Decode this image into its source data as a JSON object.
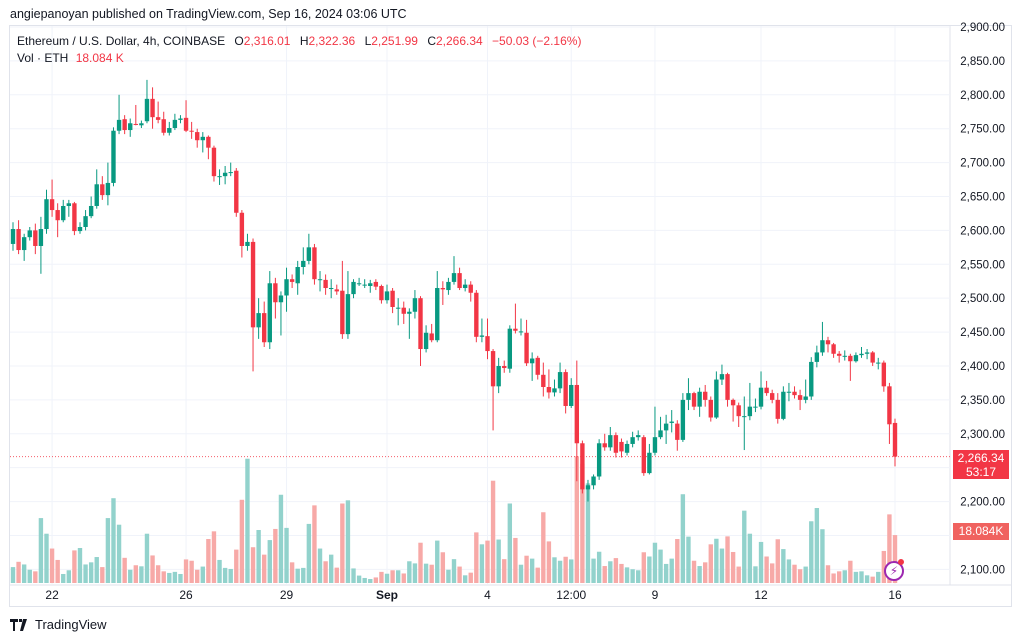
{
  "header": {
    "published": "angiepanoyan published on TradingView.com, Sep 16, 2024 03:06 UTC"
  },
  "legend": {
    "symbol": "Ethereum / U.S. Dollar, 4h, COINBASE",
    "o_label": "O",
    "o": "2,316.01",
    "h_label": "H",
    "h": "2,322.36",
    "l_label": "L",
    "l": "2,251.99",
    "c_label": "C",
    "c": "2,266.34",
    "change": "−50.03 (−2.16%)",
    "vol_label": "Vol · ETH",
    "vol": "18.084 K"
  },
  "tags": {
    "last_price": "2,266.34",
    "countdown": "53:17",
    "volume": "18.084K"
  },
  "footer": {
    "brand": "TradingView"
  },
  "colors": {
    "up": "#089981",
    "down": "#f23645",
    "vol_up": "#92d2cc",
    "vol_down": "#f7a9a7",
    "grid": "#f0f3fa"
  },
  "chart_data": {
    "type": "candlestick",
    "title": "Ethereum / U.S. Dollar, 4h, COINBASE",
    "ylim": [
      2085,
      2910
    ],
    "y_ticks": [
      "2,900.00",
      "2,850.00",
      "2,800.00",
      "2,750.00",
      "2,700.00",
      "2,650.00",
      "2,600.00",
      "2,550.00",
      "2,500.00",
      "2,450.00",
      "2,400.00",
      "2,350.00",
      "2,300.00",
      "2,200.00",
      "2,100.00"
    ],
    "y_tick_values": [
      2900,
      2850,
      2800,
      2750,
      2700,
      2650,
      2600,
      2550,
      2500,
      2450,
      2400,
      2350,
      2300,
      2200,
      2100
    ],
    "x_ticks": [
      {
        "label": "22",
        "index": 7,
        "bold": false
      },
      {
        "label": "26",
        "index": 31,
        "bold": false
      },
      {
        "label": "29",
        "index": 49,
        "bold": false
      },
      {
        "label": "Sep",
        "index": 67,
        "bold": true
      },
      {
        "label": "4",
        "index": 85,
        "bold": false
      },
      {
        "label": "12:00",
        "index": 100,
        "bold": false
      },
      {
        "label": "9",
        "index": 115,
        "bold": false
      },
      {
        "label": "12",
        "index": 134,
        "bold": false
      },
      {
        "label": "16",
        "index": 158,
        "bold": false
      }
    ],
    "ohlc_columns": [
      "open",
      "high",
      "low",
      "close"
    ],
    "ohlc": [
      [
        2580,
        2612,
        2570,
        2602
      ],
      [
        2602,
        2615,
        2565,
        2571
      ],
      [
        2571,
        2595,
        2555,
        2590
      ],
      [
        2590,
        2605,
        2585,
        2600
      ],
      [
        2600,
        2610,
        2565,
        2577
      ],
      [
        2577,
        2620,
        2536,
        2602
      ],
      [
        2602,
        2660,
        2595,
        2646
      ],
      [
        2646,
        2675,
        2620,
        2630
      ],
      [
        2630,
        2640,
        2590,
        2615
      ],
      [
        2615,
        2645,
        2612,
        2636
      ],
      [
        2636,
        2645,
        2620,
        2640
      ],
      [
        2640,
        2642,
        2593,
        2599
      ],
      [
        2599,
        2612,
        2595,
        2605
      ],
      [
        2605,
        2630,
        2600,
        2621
      ],
      [
        2621,
        2650,
        2618,
        2636
      ],
      [
        2636,
        2690,
        2632,
        2668
      ],
      [
        2668,
        2680,
        2645,
        2652
      ],
      [
        2652,
        2700,
        2637,
        2670
      ],
      [
        2670,
        2752,
        2665,
        2747
      ],
      [
        2747,
        2800,
        2742,
        2763
      ],
      [
        2764,
        2770,
        2742,
        2748
      ],
      [
        2748,
        2765,
        2738,
        2758
      ],
      [
        2757,
        2785,
        2755,
        2756
      ],
      [
        2755,
        2762,
        2751,
        2758
      ],
      [
        2761,
        2822,
        2758,
        2794
      ],
      [
        2794,
        2811,
        2750,
        2767
      ],
      [
        2767,
        2790,
        2758,
        2763
      ],
      [
        2764,
        2775,
        2740,
        2744
      ],
      [
        2744,
        2760,
        2740,
        2751
      ],
      [
        2751,
        2772,
        2748,
        2763
      ],
      [
        2763,
        2770,
        2758,
        2765
      ],
      [
        2766,
        2792,
        2745,
        2747
      ],
      [
        2747,
        2760,
        2735,
        2746
      ],
      [
        2745,
        2750,
        2722,
        2733
      ],
      [
        2733,
        2745,
        2715,
        2738
      ],
      [
        2738,
        2740,
        2705,
        2722
      ],
      [
        2722,
        2725,
        2672,
        2680
      ],
      [
        2680,
        2690,
        2667,
        2680
      ],
      [
        2680,
        2695,
        2668,
        2685
      ],
      [
        2685,
        2700,
        2680,
        2686
      ],
      [
        2688,
        2692,
        2620,
        2626
      ],
      [
        2626,
        2630,
        2560,
        2577
      ],
      [
        2577,
        2595,
        2570,
        2583
      ],
      [
        2583,
        2588,
        2392,
        2457
      ],
      [
        2457,
        2500,
        2440,
        2478
      ],
      [
        2478,
        2495,
        2428,
        2435
      ],
      [
        2435,
        2540,
        2425,
        2522
      ],
      [
        2522,
        2530,
        2470,
        2494
      ],
      [
        2494,
        2510,
        2445,
        2504
      ],
      [
        2504,
        2545,
        2480,
        2528
      ],
      [
        2528,
        2535,
        2515,
        2524
      ],
      [
        2522,
        2555,
        2505,
        2546
      ],
      [
        2546,
        2575,
        2535,
        2555
      ],
      [
        2555,
        2595,
        2550,
        2575
      ],
      [
        2575,
        2580,
        2520,
        2528
      ],
      [
        2528,
        2540,
        2510,
        2528
      ],
      [
        2527,
        2535,
        2505,
        2515
      ],
      [
        2515,
        2528,
        2500,
        2515
      ],
      [
        2513,
        2520,
        2505,
        2510
      ],
      [
        2511,
        2555,
        2440,
        2447
      ],
      [
        2447,
        2540,
        2440,
        2506
      ],
      [
        2506,
        2528,
        2500,
        2524
      ],
      [
        2522,
        2530,
        2518,
        2522
      ],
      [
        2520,
        2528,
        2515,
        2520
      ],
      [
        2518,
        2527,
        2508,
        2522
      ],
      [
        2524,
        2528,
        2512,
        2517
      ],
      [
        2518,
        2520,
        2492,
        2497
      ],
      [
        2497,
        2520,
        2492,
        2510
      ],
      [
        2511,
        2515,
        2478,
        2487
      ],
      [
        2486,
        2500,
        2460,
        2486
      ],
      [
        2486,
        2495,
        2462,
        2477
      ],
      [
        2477,
        2485,
        2440,
        2480
      ],
      [
        2480,
        2512,
        2470,
        2500
      ],
      [
        2500,
        2503,
        2400,
        2425
      ],
      [
        2425,
        2460,
        2420,
        2449
      ],
      [
        2448,
        2462,
        2435,
        2438
      ],
      [
        2438,
        2540,
        2435,
        2515
      ],
      [
        2515,
        2525,
        2490,
        2513
      ],
      [
        2512,
        2530,
        2505,
        2524
      ],
      [
        2524,
        2562,
        2520,
        2537
      ],
      [
        2537,
        2545,
        2512,
        2515
      ],
      [
        2515,
        2528,
        2510,
        2520
      ],
      [
        2520,
        2525,
        2495,
        2508
      ],
      [
        2508,
        2512,
        2435,
        2443
      ],
      [
        2443,
        2470,
        2435,
        2445
      ],
      [
        2444,
        2470,
        2410,
        2422
      ],
      [
        2422,
        2425,
        2305,
        2370
      ],
      [
        2370,
        2412,
        2360,
        2400
      ],
      [
        2400,
        2408,
        2390,
        2397
      ],
      [
        2396,
        2460,
        2390,
        2455
      ],
      [
        2455,
        2492,
        2448,
        2452
      ],
      [
        2451,
        2470,
        2445,
        2451
      ],
      [
        2449,
        2468,
        2400,
        2404
      ],
      [
        2404,
        2420,
        2378,
        2411
      ],
      [
        2412,
        2415,
        2380,
        2387
      ],
      [
        2387,
        2405,
        2355,
        2369
      ],
      [
        2369,
        2395,
        2352,
        2361
      ],
      [
        2361,
        2380,
        2355,
        2367
      ],
      [
        2367,
        2405,
        2360,
        2391
      ],
      [
        2391,
        2395,
        2330,
        2341
      ],
      [
        2341,
        2382,
        2338,
        2372
      ],
      [
        2372,
        2408,
        2230,
        2286
      ],
      [
        2286,
        2290,
        2212,
        2218
      ],
      [
        2218,
        2232,
        2200,
        2224
      ],
      [
        2224,
        2240,
        2218,
        2237
      ],
      [
        2237,
        2292,
        2232,
        2286
      ],
      [
        2286,
        2300,
        2275,
        2280
      ],
      [
        2280,
        2310,
        2275,
        2298
      ],
      [
        2298,
        2302,
        2265,
        2272
      ],
      [
        2288,
        2293,
        2265,
        2274
      ],
      [
        2272,
        2290,
        2268,
        2285
      ],
      [
        2285,
        2303,
        2280,
        2295
      ],
      [
        2295,
        2305,
        2290,
        2298
      ],
      [
        2295,
        2298,
        2238,
        2242
      ],
      [
        2242,
        2285,
        2240,
        2272
      ],
      [
        2272,
        2340,
        2268,
        2295
      ],
      [
        2295,
        2325,
        2292,
        2305
      ],
      [
        2305,
        2328,
        2285,
        2315
      ],
      [
        2316,
        2335,
        2302,
        2318
      ],
      [
        2315,
        2320,
        2275,
        2291
      ],
      [
        2291,
        2360,
        2288,
        2350
      ],
      [
        2350,
        2382,
        2335,
        2360
      ],
      [
        2360,
        2362,
        2335,
        2340
      ],
      [
        2340,
        2368,
        2325,
        2362
      ],
      [
        2362,
        2372,
        2340,
        2350
      ],
      [
        2350,
        2355,
        2318,
        2324
      ],
      [
        2324,
        2392,
        2322,
        2380
      ],
      [
        2380,
        2402,
        2372,
        2388
      ],
      [
        2388,
        2390,
        2340,
        2350
      ],
      [
        2350,
        2352,
        2318,
        2342
      ],
      [
        2342,
        2346,
        2310,
        2326
      ],
      [
        2326,
        2355,
        2276,
        2326
      ],
      [
        2326,
        2375,
        2320,
        2340
      ],
      [
        2340,
        2352,
        2332,
        2340
      ],
      [
        2340,
        2392,
        2336,
        2368
      ],
      [
        2368,
        2378,
        2356,
        2360
      ],
      [
        2360,
        2365,
        2345,
        2350
      ],
      [
        2350,
        2360,
        2315,
        2322
      ],
      [
        2322,
        2370,
        2320,
        2362
      ],
      [
        2362,
        2375,
        2348,
        2362
      ],
      [
        2362,
        2370,
        2352,
        2357
      ],
      [
        2357,
        2365,
        2335,
        2350
      ],
      [
        2350,
        2380,
        2345,
        2355
      ],
      [
        2355,
        2413,
        2350,
        2406
      ],
      [
        2406,
        2430,
        2398,
        2420
      ],
      [
        2420,
        2465,
        2415,
        2438
      ],
      [
        2438,
        2443,
        2420,
        2432
      ],
      [
        2432,
        2434,
        2412,
        2418
      ],
      [
        2418,
        2422,
        2405,
        2415
      ],
      [
        2415,
        2423,
        2408,
        2415
      ],
      [
        2415,
        2418,
        2378,
        2407
      ],
      [
        2407,
        2420,
        2405,
        2416
      ],
      [
        2416,
        2428,
        2412,
        2418
      ],
      [
        2418,
        2425,
        2410,
        2420
      ],
      [
        2420,
        2422,
        2400,
        2405
      ],
      [
        2405,
        2412,
        2395,
        2405
      ],
      [
        2405,
        2408,
        2362,
        2370
      ],
      [
        2370,
        2375,
        2285,
        2314
      ],
      [
        2316.01,
        2322.36,
        2251.99,
        2266.34
      ]
    ],
    "volume_unit": "K ETH",
    "volume": [
      6,
      8,
      7,
      5,
      4.4,
      24.5,
      18.6,
      13,
      8.7,
      3.4,
      4.8,
      12.3,
      13.2,
      7,
      7.8,
      9.8,
      6,
      24.5,
      32,
      22,
      9.5,
      5,
      6.7,
      6.3,
      18.6,
      10.4,
      6.7,
      4.4,
      3.8,
      4.2,
      3.4,
      8.9,
      8.4,
      5,
      6.2,
      16.6,
      19.5,
      8.7,
      5.7,
      5.3,
      12.6,
      31.4,
      46.9,
      13.5,
      20,
      10.7,
      16.2,
      20.4,
      33.3,
      20.8,
      7.8,
      5.4,
      5.7,
      22.3,
      29.3,
      13,
      8.2,
      10.7,
      5.8,
      30,
      31.2,
      5.5,
      2.8,
      1.9,
      1.5,
      2.1,
      4.2,
      3.5,
      4.8,
      4.8,
      3.6,
      8.2,
      7.4,
      15.2,
      7.3,
      6.9,
      16,
      11.6,
      5,
      9,
      6.2,
      2.9,
      3.9,
      19.1,
      14.6,
      16,
      38.6,
      16.4,
      9,
      30,
      17,
      6.9,
      10.3,
      9.2,
      5.8,
      26.7,
      15.7,
      9.7,
      8.4,
      9.9,
      8.9,
      47.8,
      45,
      37.6,
      9.2,
      11.8,
      6.4,
      8.2,
      9.4,
      7.2,
      5.9,
      5.2,
      4.8,
      11.6,
      10,
      15.2,
      12.6,
      7.2,
      9.2,
      16.6,
      33.5,
      17.5,
      8.4,
      6.4,
      7.8,
      14.6,
      16.7,
      13,
      17.6,
      11.7,
      6.2,
      27.3,
      18.6,
      6.3,
      15.5,
      10,
      7.4,
      16.5,
      12.8,
      8.9,
      6.9,
      5.2,
      6.2,
      23.3,
      28.3,
      20.3,
      6.7,
      3.6,
      4.4,
      4.8,
      8.4,
      4.2,
      4.4,
      2.9,
      2.4,
      4.2,
      12.1,
      25.9,
      18.084
    ]
  }
}
